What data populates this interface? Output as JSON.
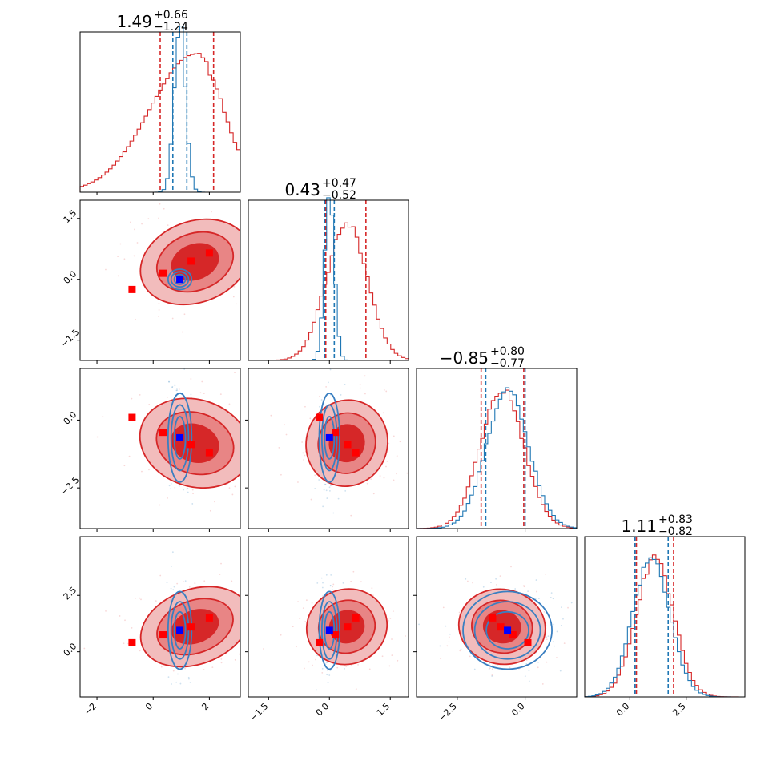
{
  "chart_data": {
    "type": "corner",
    "description_colors": {
      "red_series": "#d62728",
      "blue_series": "#1f77b4",
      "truth_red": "#ff0000",
      "truth_blue": "#0000ff"
    },
    "params": [
      {
        "name": "p0",
        "ticks": [
          -2,
          0,
          2
        ],
        "tick_labels": [
          "−2",
          "0",
          "2"
        ],
        "range": [
          -2.6,
          3.1
        ]
      },
      {
        "name": "p1",
        "ticks": [
          -1.5,
          0.0,
          1.5
        ],
        "tick_labels": [
          "−1.5",
          "0.0",
          "1.5"
        ],
        "range": [
          -2.0,
          1.95
        ]
      },
      {
        "name": "p2",
        "ticks": [
          -2.5,
          0.0
        ],
        "tick_labels": [
          "−2.5",
          "0.0"
        ],
        "range": [
          -4.0,
          1.9
        ]
      },
      {
        "name": "p3",
        "ticks": [
          0.0,
          2.5
        ],
        "tick_labels": [
          "0.0",
          "2.5"
        ],
        "range": [
          -2.0,
          5.1
        ]
      }
    ],
    "titles": [
      {
        "median": "1.49",
        "plus": "+0.66",
        "minus": "−1.24"
      },
      {
        "median": "0.43",
        "plus": "+0.47",
        "minus": "−0.52"
      },
      {
        "median": "−0.85",
        "plus": "+0.80",
        "minus": "−0.77"
      },
      {
        "median": "1.11",
        "plus": "+0.83",
        "minus": "−0.82"
      }
    ],
    "series": [
      {
        "name": "red",
        "color": "#d62728",
        "means": [
          1.49,
          0.43,
          -0.85,
          1.11
        ],
        "sds": [
          1.0,
          0.5,
          0.8,
          0.83
        ],
        "quantile_lines": [
          [
            0.25,
            2.15
          ],
          [
            -0.09,
            0.9
          ],
          [
            -1.62,
            -0.05
          ],
          [
            0.29,
            1.94
          ]
        ]
      },
      {
        "name": "blue",
        "color": "#1f77b4",
        "means": [
          0.95,
          0.0,
          -0.65,
          0.95
        ],
        "sds": [
          0.2,
          0.12,
          0.78,
          0.82
        ],
        "quantile_lines": [
          [
            0.7,
            1.2
          ],
          [
            -0.12,
            0.12
          ],
          [
            -1.45,
            0.0
          ],
          [
            0.23,
            1.7
          ]
        ]
      }
    ],
    "red_points": [
      [
        2.0,
        0.65,
        -1.2,
        1.5
      ],
      [
        1.35,
        0.45,
        -0.9,
        1.1
      ],
      [
        0.35,
        0.15,
        -0.45,
        0.75
      ],
      [
        -0.75,
        -0.25,
        0.1,
        0.4
      ]
    ],
    "blue_point": [
      0.95,
      0.0,
      -0.65,
      0.95
    ]
  }
}
